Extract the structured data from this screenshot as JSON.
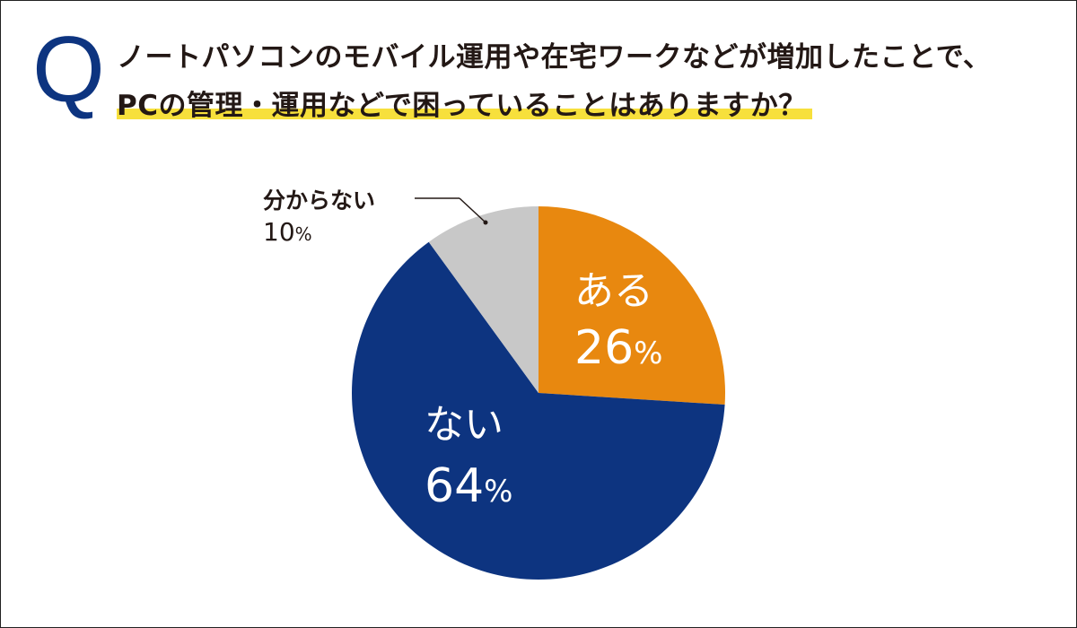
{
  "question": {
    "mark": "Q",
    "line1": "ノートパソコンのモバイル運用や在宅ワークなどが増加したことで、",
    "line2": "PCの管理・運用などで困っていることはありますか？"
  },
  "chart_data": {
    "type": "pie",
    "title": "",
    "slices": [
      {
        "label": "ある",
        "value": 26,
        "display": "26",
        "unit": "%",
        "color": "#e8880f"
      },
      {
        "label": "ない",
        "value": 64,
        "display": "64",
        "unit": "%",
        "color": "#0d3480"
      },
      {
        "label": "分からない",
        "value": 10,
        "display": "10",
        "unit": "%",
        "color": "#c8c8c8"
      }
    ],
    "start": "12 o'clock",
    "direction": "clockwise"
  }
}
